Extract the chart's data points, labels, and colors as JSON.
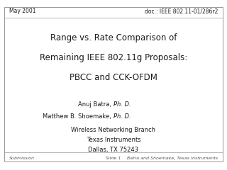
{
  "bg_color": "#ffffff",
  "border_color": "#999999",
  "header_left": "May 2001",
  "header_right": "doc.: IEEE 802.11-01/286r2",
  "title_line1": "Range vs. Rate Comparison of",
  "title_line2": "Remaining IEEE 802.11g Proposals:",
  "title_line3": "PBCC and CCK-OFDM",
  "author_line1_normal": "Anuj Batra, ",
  "author_line1_italic": "Ph. D.",
  "author_line2_normal": "Matthew B. Shoemake, ",
  "author_line2_italic": "Ph. D.",
  "org_line1": "Wireless Networking Branch",
  "org_line2": "Texas Instruments",
  "org_line3": "Dallas, TX 75243",
  "footer_left": "Submission",
  "footer_center": "Slide 1",
  "footer_right": "Batra and Shoemake, Texas Instruments",
  "header_fontsize": 5.5,
  "title_fontsize": 8.5,
  "author_fontsize": 6.0,
  "org_fontsize": 6.0,
  "footer_fontsize": 4.5,
  "text_color": "#1a1a1a",
  "footer_color": "#555555",
  "header_color": "#1a1a1a"
}
